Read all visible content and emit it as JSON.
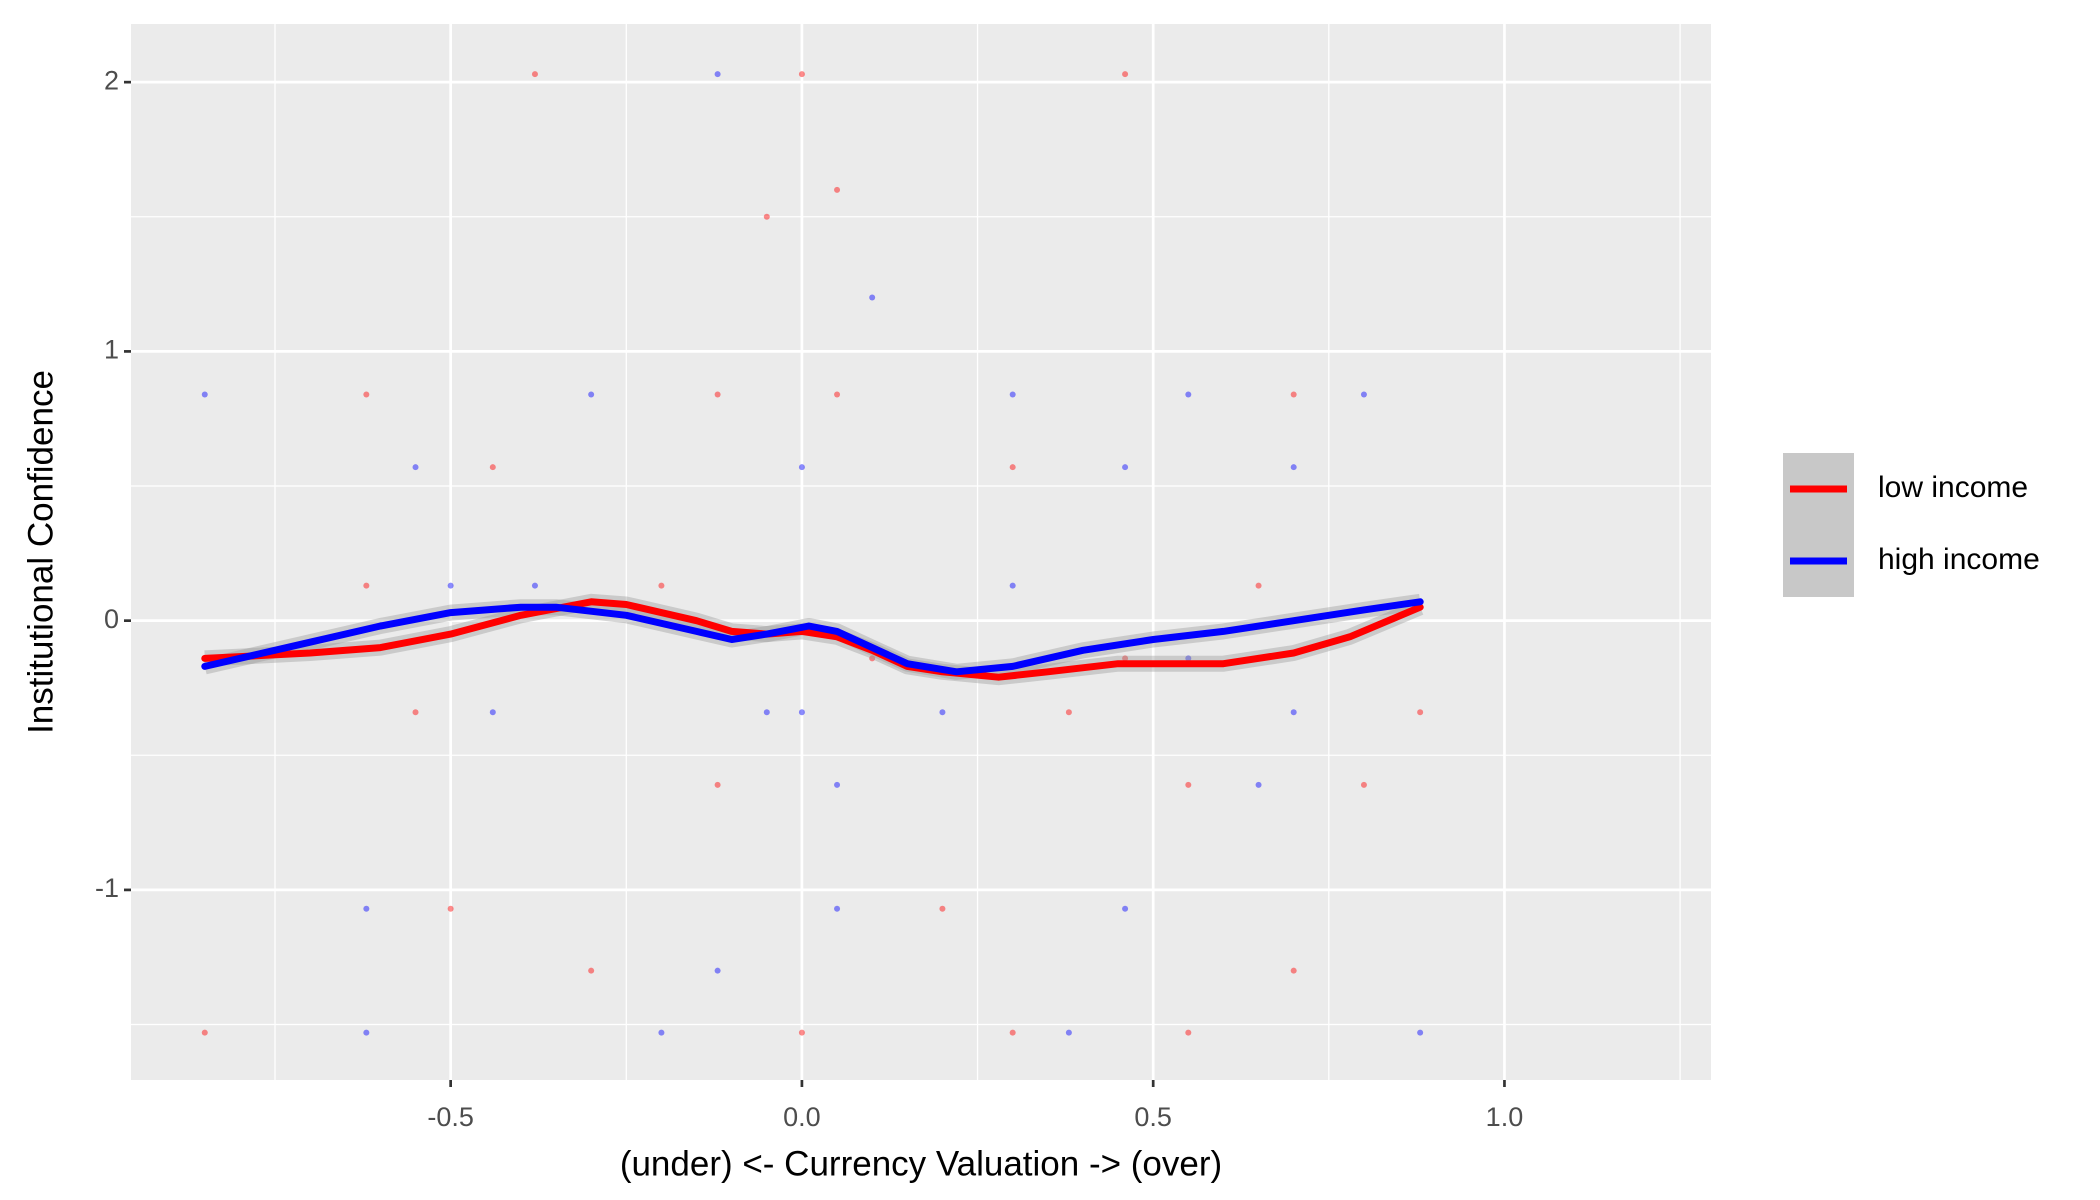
{
  "chart_data": {
    "type": "scatter_smooth",
    "x_label": "(under) <- Currency Valuation -> (over)",
    "y_label": "Institutional Confidence",
    "xlim": [
      -0.955,
      1.294
    ],
    "ylim": [
      -1.706,
      2.216
    ],
    "xticks": [
      {
        "value": -0.5,
        "label": "-0.5"
      },
      {
        "value": 0,
        "label": "0.0"
      },
      {
        "value": 0.5,
        "label": "0.5"
      },
      {
        "value": 1,
        "label": "1.0"
      }
    ],
    "yticks": [
      -1,
      0,
      1,
      2
    ],
    "x_minor_breaks": [
      -0.75,
      -0.25,
      0.25,
      0.75,
      1.25
    ],
    "y_minor_breaks": [
      -1.5,
      -0.5,
      0.5,
      1.5
    ],
    "grid": true,
    "legend_position": "right",
    "series": [
      {
        "name": "low income",
        "color": "#ff0000",
        "x": [
          -0.85,
          -0.7,
          -0.6,
          -0.5,
          -0.4,
          -0.3,
          -0.25,
          -0.15,
          -0.1,
          -0.05,
          0,
          0.05,
          0.1,
          0.15,
          0.2,
          0.28,
          0.35,
          0.45,
          0.5,
          0.6,
          0.7,
          0.78,
          0.88
        ],
        "values": [
          -0.14,
          -0.12,
          -0.1,
          -0.05,
          0.02,
          0.07,
          0.06,
          0.0,
          -0.04,
          -0.05,
          -0.04,
          -0.06,
          -0.11,
          -0.17,
          -0.19,
          -0.21,
          -0.19,
          -0.16,
          -0.16,
          -0.16,
          -0.12,
          -0.06,
          0.05
        ],
        "points_x": [
          -0.85,
          -0.62,
          -0.55,
          -0.44,
          -0.38,
          -0.3,
          -0.2,
          -0.12,
          -0.05,
          0.0,
          0.05,
          0.1,
          0.2,
          0.3,
          0.38,
          0.46,
          0.55,
          0.65,
          0.7,
          0.8,
          0.88,
          -0.5,
          -0.12,
          0.05,
          0.3,
          0.46,
          0.7,
          -0.62,
          0.0,
          0.55
        ],
        "points_y": [
          -1.53,
          0.84,
          -0.34,
          0.57,
          2.03,
          -1.3,
          0.13,
          -0.61,
          1.5,
          -1.53,
          0.84,
          -0.14,
          -1.07,
          0.57,
          -0.34,
          2.03,
          -1.53,
          0.13,
          0.84,
          -0.61,
          -0.34,
          -1.07,
          0.84,
          1.6,
          -1.53,
          -0.14,
          -1.3,
          0.13,
          2.03,
          -0.61
        ]
      },
      {
        "name": "high income",
        "color": "#0000ff",
        "x": [
          -0.85,
          -0.7,
          -0.6,
          -0.5,
          -0.4,
          -0.35,
          -0.25,
          -0.15,
          -0.1,
          -0.05,
          0.01,
          0.05,
          0.1,
          0.15,
          0.22,
          0.3,
          0.4,
          0.5,
          0.6,
          0.7,
          0.8,
          0.88
        ],
        "values": [
          -0.17,
          -0.08,
          -0.02,
          0.03,
          0.05,
          0.05,
          0.02,
          -0.04,
          -0.07,
          -0.05,
          -0.02,
          -0.04,
          -0.1,
          -0.16,
          -0.19,
          -0.17,
          -0.11,
          -0.07,
          -0.04,
          0.0,
          0.04,
          0.07
        ],
        "points_x": [
          -0.85,
          -0.62,
          -0.55,
          -0.44,
          -0.38,
          -0.3,
          -0.2,
          -0.12,
          -0.05,
          0.0,
          0.05,
          0.1,
          0.2,
          0.3,
          0.38,
          0.46,
          0.55,
          0.65,
          0.7,
          0.8,
          0.88,
          -0.5,
          -0.12,
          0.05,
          0.3,
          0.46,
          0.7,
          -0.62,
          0.0,
          0.55
        ],
        "points_y": [
          0.84,
          -1.53,
          0.57,
          -0.34,
          0.13,
          0.84,
          -1.53,
          2.03,
          -0.34,
          0.57,
          -1.07,
          1.2,
          -0.34,
          0.84,
          -1.53,
          0.57,
          -0.14,
          -0.61,
          -0.34,
          0.84,
          -1.53,
          0.13,
          -1.3,
          -0.61,
          0.13,
          -1.07,
          0.57,
          -1.07,
          -0.34,
          0.84
        ]
      }
    ]
  }
}
